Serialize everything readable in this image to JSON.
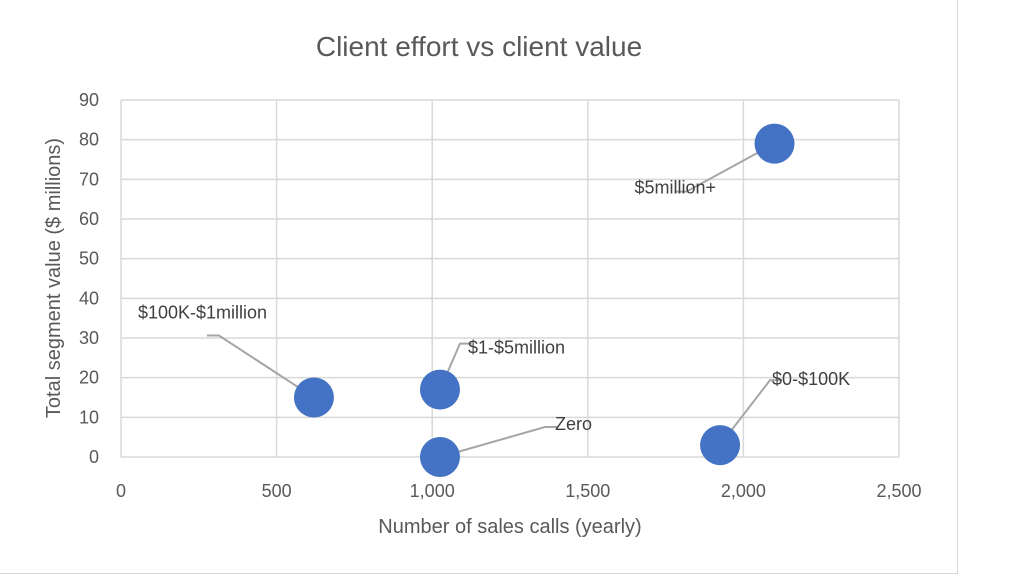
{
  "chart_data": {
    "type": "scatter",
    "title": "Client effort vs client value",
    "xlabel": "Number of sales calls (yearly)",
    "ylabel": "Total segment value ($ millions)",
    "xlim": [
      0,
      2500
    ],
    "ylim": [
      0,
      90
    ],
    "x_ticks": [
      0,
      500,
      1000,
      1500,
      2000,
      2500
    ],
    "x_tick_labels": [
      "0",
      "500",
      "1,000",
      "1,500",
      "2,000",
      "2,500"
    ],
    "y_ticks": [
      0,
      10,
      20,
      30,
      40,
      50,
      60,
      70,
      80,
      90
    ],
    "y_tick_labels": [
      "0",
      "10",
      "20",
      "30",
      "40",
      "50",
      "60",
      "70",
      "80",
      "90"
    ],
    "grid": true,
    "legend": "none",
    "point_color": "#4472c4",
    "points": [
      {
        "label": "$5million+",
        "x": 2100,
        "y": 79
      },
      {
        "label": "$100K-$1million",
        "x": 620,
        "y": 15
      },
      {
        "label": "$1-$5million",
        "x": 1025,
        "y": 17
      },
      {
        "label": "$0-$100K",
        "x": 1925,
        "y": 3
      },
      {
        "label": "Zero",
        "x": 1025,
        "y": 0
      }
    ]
  }
}
